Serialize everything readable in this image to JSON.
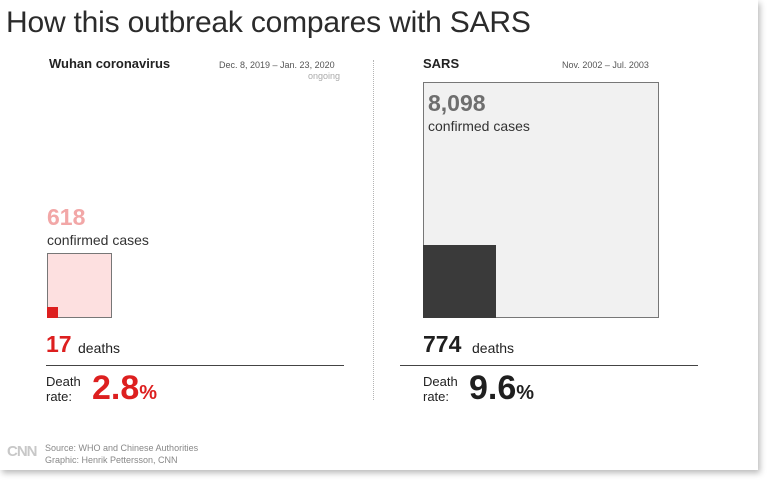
{
  "title": "How this outbreak compares with SARS",
  "chart_data": [
    {
      "type": "area-square",
      "name": "Wuhan coronavirus",
      "period": "Dec. 8, 2019 – Jan. 23, 2020",
      "status": "ongoing",
      "confirmed_cases": 618,
      "confirmed_cases_label": "618",
      "cases_label": "confirmed cases",
      "deaths": 17,
      "deaths_label": "17",
      "deaths_text": "deaths",
      "death_rate_label": "Death rate:",
      "death_rate_value": "2.8",
      "death_rate_unit": "%",
      "colors": {
        "cases_fill": "#fde0e0",
        "cases_text": "#f2a7a7",
        "deaths_fill": "#dd1f1f",
        "rate_text": "#dd1f1f"
      }
    },
    {
      "type": "area-square",
      "name": "SARS",
      "period": "Nov. 2002 – Jul. 2003",
      "confirmed_cases": 8098,
      "confirmed_cases_label": "8,098",
      "cases_label": "confirmed cases",
      "deaths": 774,
      "deaths_label": "774",
      "deaths_text": "deaths",
      "death_rate_label": "Death rate:",
      "death_rate_value": "9.6",
      "death_rate_unit": "%",
      "colors": {
        "cases_fill": "#f1f1f1",
        "cases_text": "#6e6e6e",
        "deaths_fill": "#3a3a3a",
        "rate_text": "#1f1f1f"
      }
    }
  ],
  "footer": {
    "logo": "CNN",
    "source": "Source: WHO and Chinese Authorities",
    "graphic": "Graphic: Henrik Pettersson, CNN"
  }
}
